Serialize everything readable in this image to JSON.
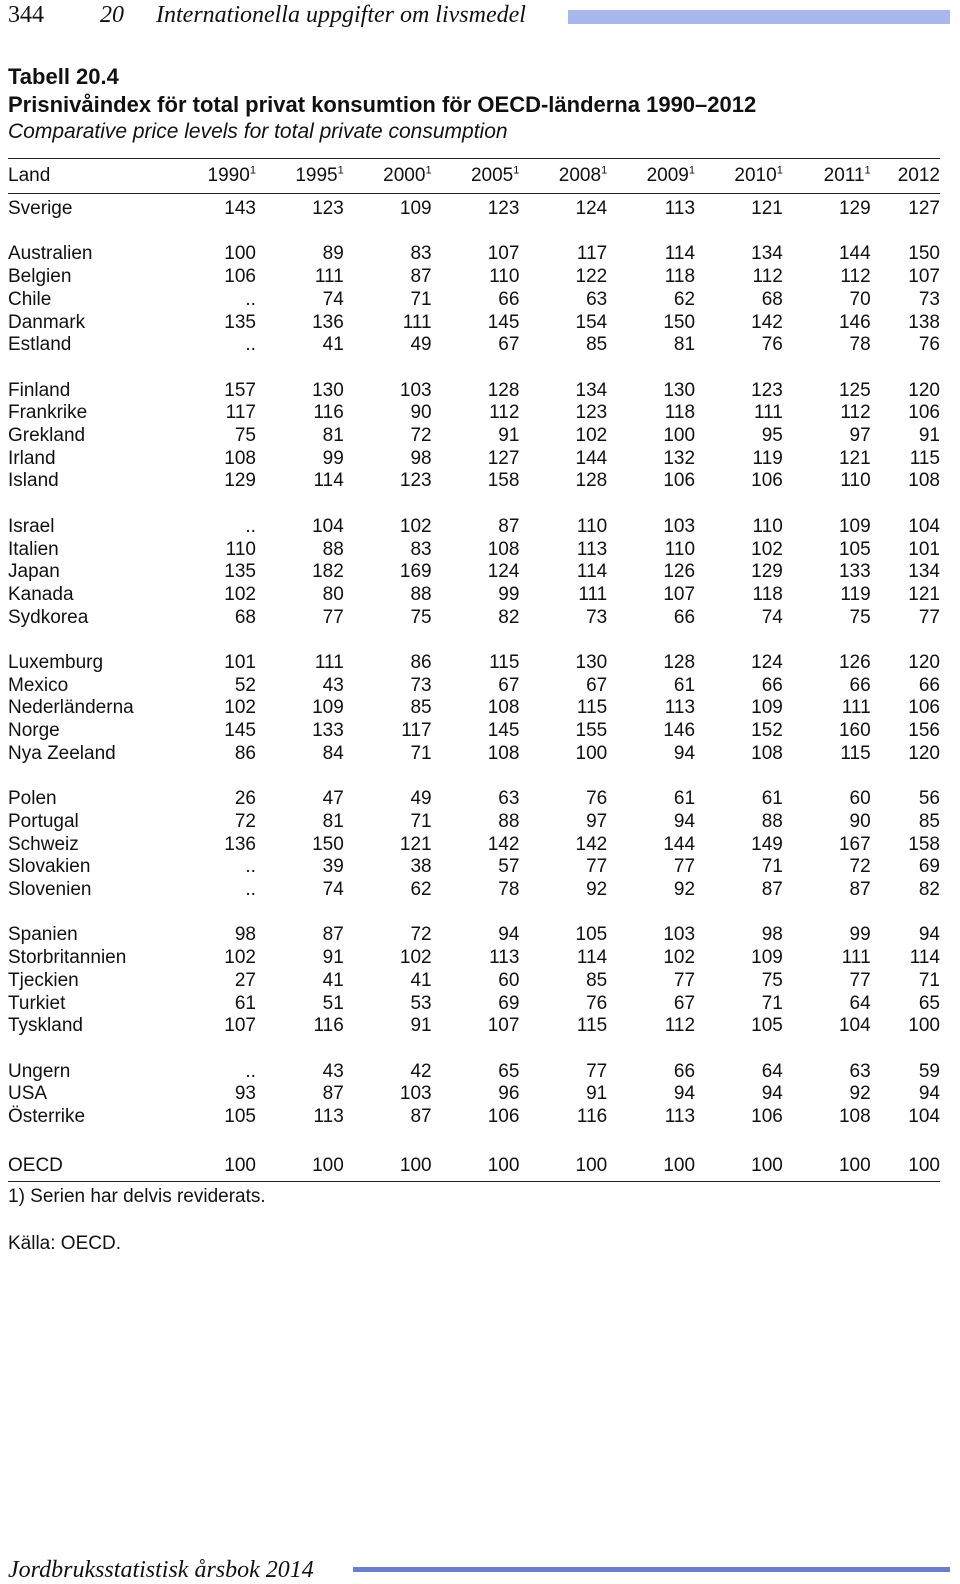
{
  "header": {
    "page_number": "344",
    "chapter_number": "20",
    "chapter_title": "Internationella uppgifter om livsmedel",
    "bar_color": "#a8b8ec"
  },
  "table": {
    "label": "Tabell 20.4",
    "title_sv": "Prisnivåindex för total privat konsumtion för OECD-länderna 1990–2012",
    "title_en": "Comparative price levels for total private consumption",
    "columns": [
      {
        "label": "Land",
        "sup": ""
      },
      {
        "label": "1990",
        "sup": "1"
      },
      {
        "label": "1995",
        "sup": "1"
      },
      {
        "label": "2000",
        "sup": "1"
      },
      {
        "label": "2005",
        "sup": "1"
      },
      {
        "label": "2008",
        "sup": "1"
      },
      {
        "label": "2009",
        "sup": "1"
      },
      {
        "label": "2010",
        "sup": "1"
      },
      {
        "label": "2011",
        "sup": "1"
      },
      {
        "label": "2012",
        "sup": ""
      }
    ],
    "groups": [
      [
        [
          "Sverige",
          "143",
          "123",
          "109",
          "123",
          "124",
          "113",
          "121",
          "129",
          "127"
        ]
      ],
      [
        [
          "Australien",
          "100",
          "89",
          "83",
          "107",
          "117",
          "114",
          "134",
          "144",
          "150"
        ],
        [
          "Belgien",
          "106",
          "111",
          "87",
          "110",
          "122",
          "118",
          "112",
          "112",
          "107"
        ],
        [
          "Chile",
          "..",
          "74",
          "71",
          "66",
          "63",
          "62",
          "68",
          "70",
          "73"
        ],
        [
          "Danmark",
          "135",
          "136",
          "111",
          "145",
          "154",
          "150",
          "142",
          "146",
          "138"
        ],
        [
          "Estland",
          "..",
          "41",
          "49",
          "67",
          "85",
          "81",
          "76",
          "78",
          "76"
        ]
      ],
      [
        [
          "Finland",
          "157",
          "130",
          "103",
          "128",
          "134",
          "130",
          "123",
          "125",
          "120"
        ],
        [
          "Frankrike",
          "117",
          "116",
          "90",
          "112",
          "123",
          "118",
          "111",
          "112",
          "106"
        ],
        [
          "Grekland",
          "75",
          "81",
          "72",
          "91",
          "102",
          "100",
          "95",
          "97",
          "91"
        ],
        [
          "Irland",
          "108",
          "99",
          "98",
          "127",
          "144",
          "132",
          "119",
          "121",
          "115"
        ],
        [
          "Island",
          "129",
          "114",
          "123",
          "158",
          "128",
          "106",
          "106",
          "110",
          "108"
        ]
      ],
      [
        [
          "Israel",
          "..",
          "104",
          "102",
          "87",
          "110",
          "103",
          "110",
          "109",
          "104"
        ],
        [
          "Italien",
          "110",
          "88",
          "83",
          "108",
          "113",
          "110",
          "102",
          "105",
          "101"
        ],
        [
          "Japan",
          "135",
          "182",
          "169",
          "124",
          "114",
          "126",
          "129",
          "133",
          "134"
        ],
        [
          "Kanada",
          "102",
          "80",
          "88",
          "99",
          "111",
          "107",
          "118",
          "119",
          "121"
        ],
        [
          "Sydkorea",
          "68",
          "77",
          "75",
          "82",
          "73",
          "66",
          "74",
          "75",
          "77"
        ]
      ],
      [
        [
          "Luxemburg",
          "101",
          "111",
          "86",
          "115",
          "130",
          "128",
          "124",
          "126",
          "120"
        ],
        [
          "Mexico",
          "52",
          "43",
          "73",
          "67",
          "67",
          "61",
          "66",
          "66",
          "66"
        ],
        [
          "Nederländerna",
          "102",
          "109",
          "85",
          "108",
          "115",
          "113",
          "109",
          "111",
          "106"
        ],
        [
          "Norge",
          "145",
          "133",
          "117",
          "145",
          "155",
          "146",
          "152",
          "160",
          "156"
        ],
        [
          "Nya Zeeland",
          "86",
          "84",
          "71",
          "108",
          "100",
          "94",
          "108",
          "115",
          "120"
        ]
      ],
      [
        [
          "Polen",
          "26",
          "47",
          "49",
          "63",
          "76",
          "61",
          "61",
          "60",
          "56"
        ],
        [
          "Portugal",
          "72",
          "81",
          "71",
          "88",
          "97",
          "94",
          "88",
          "90",
          "85"
        ],
        [
          "Schweiz",
          "136",
          "150",
          "121",
          "142",
          "142",
          "144",
          "149",
          "167",
          "158"
        ],
        [
          "Slovakien",
          "..",
          "39",
          "38",
          "57",
          "77",
          "77",
          "71",
          "72",
          "69"
        ],
        [
          "Slovenien",
          "..",
          "74",
          "62",
          "78",
          "92",
          "92",
          "87",
          "87",
          "82"
        ]
      ],
      [
        [
          "Spanien",
          "98",
          "87",
          "72",
          "94",
          "105",
          "103",
          "98",
          "99",
          "94"
        ],
        [
          "Storbritannien",
          "102",
          "91",
          "102",
          "113",
          "114",
          "102",
          "109",
          "111",
          "114"
        ],
        [
          "Tjeckien",
          "27",
          "41",
          "41",
          "60",
          "85",
          "77",
          "75",
          "77",
          "71"
        ],
        [
          "Turkiet",
          "61",
          "51",
          "53",
          "69",
          "76",
          "67",
          "71",
          "64",
          "65"
        ],
        [
          "Tyskland",
          "107",
          "116",
          "91",
          "107",
          "115",
          "112",
          "105",
          "104",
          "100"
        ]
      ],
      [
        [
          "Ungern",
          "..",
          "43",
          "42",
          "65",
          "77",
          "66",
          "64",
          "63",
          "59"
        ],
        [
          "USA",
          "93",
          "87",
          "103",
          "96",
          "91",
          "94",
          "94",
          "92",
          "94"
        ],
        [
          "Österrike",
          "105",
          "113",
          "87",
          "106",
          "116",
          "113",
          "106",
          "108",
          "104"
        ]
      ],
      [
        [
          "OECD",
          "100",
          "100",
          "100",
          "100",
          "100",
          "100",
          "100",
          "100",
          "100"
        ]
      ]
    ],
    "footnote": "1) Serien har delvis reviderats.",
    "source": "Källa: OECD."
  },
  "footer": {
    "title": "Jordbruksstatistisk årsbok 2014",
    "bar_color": "#6a7fc8"
  }
}
